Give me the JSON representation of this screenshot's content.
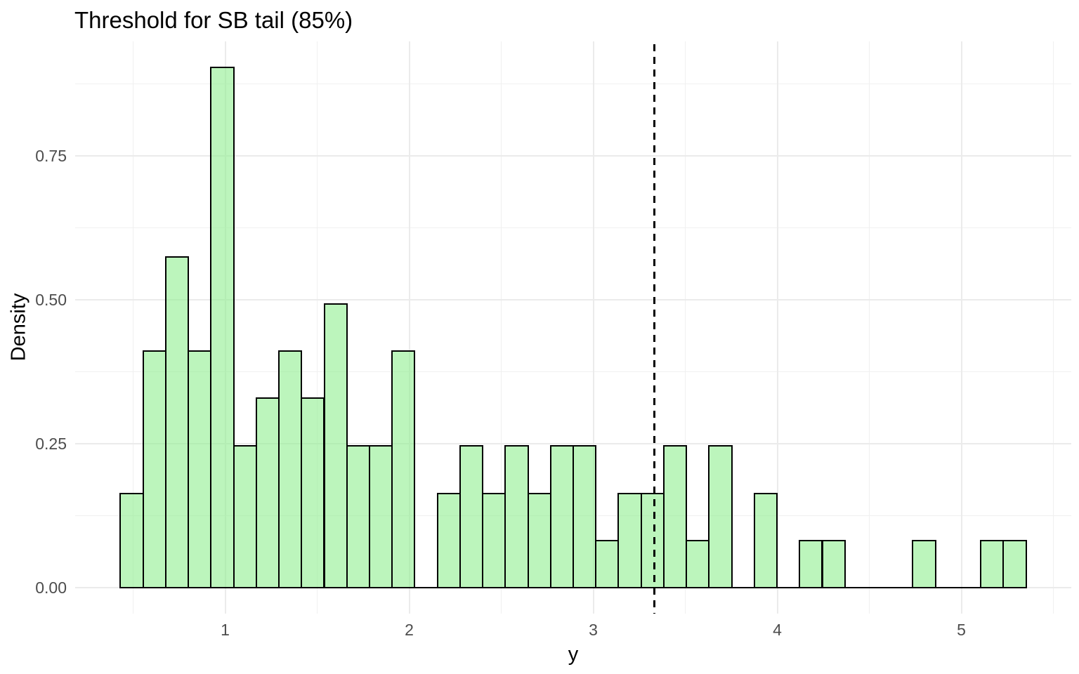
{
  "chart_data": {
    "type": "bar",
    "subtype": "histogram",
    "title": "Threshold for SB tail (85%)",
    "xlabel": "y",
    "ylabel": "Density",
    "xlim": [
      0.185,
      5.597
    ],
    "ylim": [
      -0.045,
      0.949
    ],
    "grid": "on",
    "x_major_ticks": {
      "values": [
        1,
        2,
        3,
        4,
        5
      ],
      "labels": [
        "1",
        "2",
        "3",
        "4",
        "5"
      ]
    },
    "y_major_ticks": {
      "values": [
        0,
        0.25,
        0.5,
        0.75
      ],
      "labels": [
        "0.00",
        "0.25",
        "0.50",
        "0.75"
      ]
    },
    "x_minor_ticks": [
      0.5,
      1.5,
      2.5,
      3.5,
      4.5,
      5.5
    ],
    "y_minor_ticks": [
      0.125,
      0.375,
      0.625,
      0.875
    ],
    "bin_start": 0.431,
    "bin_width": 0.123,
    "counts": [
      2,
      5,
      7,
      5,
      11,
      3,
      4,
      5,
      4,
      6,
      3,
      3,
      5,
      0,
      2,
      3,
      2,
      3,
      2,
      3,
      3,
      1,
      2,
      2,
      3,
      1,
      3,
      0,
      2,
      0,
      1,
      1,
      0,
      0,
      0,
      1,
      0,
      0,
      1,
      1
    ],
    "densities": [
      0.164,
      0.411,
      0.575,
      0.411,
      0.904,
      0.247,
      0.329,
      0.411,
      0.329,
      0.493,
      0.247,
      0.247,
      0.411,
      0,
      0.164,
      0.247,
      0.164,
      0.247,
      0.164,
      0.247,
      0.247,
      0.082,
      0.164,
      0.164,
      0.247,
      0.082,
      0.247,
      0,
      0.164,
      0,
      0.082,
      0.082,
      0,
      0,
      0,
      0.082,
      0,
      0,
      0.082,
      0.082
    ],
    "threshold_line": {
      "x": 3.33,
      "style": "dashed",
      "color": "#000000"
    },
    "colors": {
      "bar_fill": "#90EE90",
      "bar_fill_alpha": 0.6,
      "bar_stroke": "#000000",
      "grid_major": "#EBEBEB",
      "grid_minor": "#F0F0F0",
      "tick_text": "#4D4D4D",
      "title_text": "#000000"
    }
  }
}
